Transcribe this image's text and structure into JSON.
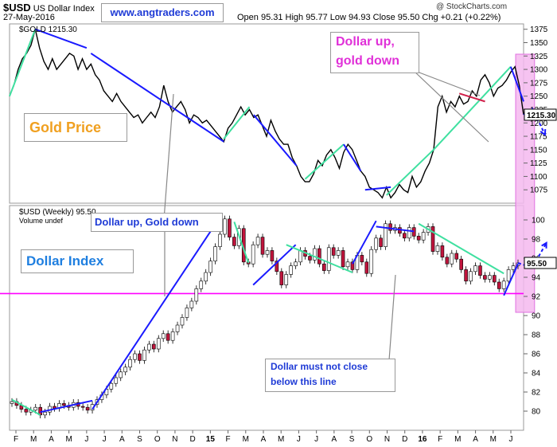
{
  "header": {
    "symbol": "$USD",
    "symbol_desc": "US Dollar Index",
    "date": "27-May-2016",
    "ohlc": "Open 95.31  High 95.77  Low 94.93  Close 95.50  Chg +0.21 (+0.22%)",
    "watermark": "@ StockCharts.com",
    "website": "www.angtraders.com"
  },
  "annotations": {
    "gold_price": "Gold Price",
    "dollar_index": "Dollar Index",
    "dollar_up_gold_down": "Dollar up, Gold down",
    "pink_line1": "Dollar up,",
    "pink_line2": "gold down",
    "bottom_line1": "Dollar must not close",
    "bottom_line2": "below this line"
  },
  "colors": {
    "trend_blue": "#1a1aff",
    "trend_green": "#3fe0a0",
    "support_magenta": "#ff00ff",
    "highlight_pink": "#f5b8ef",
    "candle_up": "#ffffff",
    "candle_down": "#c0143c"
  },
  "chart_data": [
    {
      "type": "line",
      "legend": "$GOLD 1215.30",
      "last_value_label": "1215.30",
      "ylim": [
        1050,
        1385
      ],
      "yticks": [
        1075,
        1100,
        1125,
        1150,
        1175,
        1200,
        1225,
        1250,
        1275,
        1300,
        1325,
        1350,
        1375
      ],
      "x": [
        0,
        1,
        2,
        3,
        4,
        5,
        6,
        7,
        8,
        9,
        10,
        11,
        12,
        13,
        14,
        15,
        16,
        17,
        18,
        19,
        20,
        21,
        22,
        23,
        24,
        25,
        26,
        27,
        28,
        29,
        30,
        31,
        32,
        33,
        34,
        35,
        36,
        37,
        38,
        39,
        40,
        41,
        42,
        43,
        44,
        45,
        46,
        47,
        48,
        49,
        50,
        51,
        52,
        53,
        54,
        55,
        56,
        57,
        58,
        59,
        60,
        61,
        62,
        63,
        64,
        65,
        66,
        67,
        68,
        69,
        70,
        71,
        72,
        73,
        74,
        75,
        76,
        77,
        78,
        79,
        80,
        81,
        82,
        83,
        84,
        85,
        86,
        87,
        88,
        89,
        90,
        91,
        92,
        93,
        94,
        95,
        96,
        97,
        98,
        99,
        100,
        101,
        102,
        103,
        104,
        105,
        106,
        107,
        108,
        109,
        110,
        111,
        112,
        113,
        114,
        115,
        116,
        117,
        118,
        119,
        120
      ],
      "values": [
        1250,
        1270,
        1300,
        1320,
        1330,
        1345,
        1375,
        1340,
        1315,
        1300,
        1320,
        1300,
        1310,
        1320,
        1330,
        1325,
        1300,
        1320,
        1300,
        1310,
        1290,
        1280,
        1260,
        1250,
        1240,
        1255,
        1240,
        1230,
        1220,
        1210,
        1215,
        1200,
        1210,
        1220,
        1210,
        1230,
        1270,
        1240,
        1220,
        1230,
        1240,
        1225,
        1200,
        1215,
        1210,
        1200,
        1205,
        1195,
        1185,
        1175,
        1165,
        1190,
        1200,
        1215,
        1230,
        1215,
        1225,
        1210,
        1215,
        1195,
        1175,
        1205,
        1185,
        1170,
        1160,
        1160,
        1135,
        1120,
        1100,
        1090,
        1090,
        1105,
        1130,
        1120,
        1140,
        1150,
        1135,
        1115,
        1145,
        1160,
        1150,
        1130,
        1110,
        1100,
        1080,
        1075,
        1070,
        1060,
        1080,
        1060,
        1070,
        1085,
        1075,
        1070,
        1100,
        1080,
        1090,
        1110,
        1125,
        1150,
        1230,
        1250,
        1220,
        1240,
        1230,
        1250,
        1235,
        1240,
        1260,
        1250,
        1280,
        1290,
        1275,
        1250,
        1265,
        1270,
        1280,
        1295,
        1305,
        1270,
        1215.3
      ],
      "projection": [
        [
          120,
          1215.3
        ],
        [
          122,
          1228
        ],
        [
          125,
          1178
        ]
      ]
    },
    {
      "type": "candlestick",
      "legend": "$USD (Weekly) 95.50",
      "volume_legend": "Volume undef",
      "last_value_label": "95.50",
      "ylim": [
        78,
        101.5
      ],
      "yticks": [
        80,
        82,
        84,
        86,
        88,
        90,
        92,
        94,
        96,
        98,
        100
      ],
      "xlabels": [
        "F",
        "M",
        "A",
        "M",
        "J",
        "J",
        "A",
        "S",
        "O",
        "N",
        "D",
        "15",
        "F",
        "M",
        "A",
        "M",
        "J",
        "J",
        "A",
        "S",
        "O",
        "N",
        "D",
        "16",
        "F",
        "M",
        "A",
        "M",
        "J"
      ],
      "support_level": 92.3,
      "close": [
        81.0,
        80.6,
        80.2,
        79.9,
        80.1,
        80.4,
        79.6,
        79.9,
        80.5,
        80.3,
        80.8,
        80.6,
        80.4,
        80.9,
        80.5,
        80.4,
        80.1,
        80.7,
        81.2,
        81.7,
        82.3,
        82.9,
        83.5,
        84.1,
        84.6,
        85.4,
        86.0,
        85.3,
        86.4,
        87.0,
        86.5,
        87.6,
        88.1,
        87.4,
        88.3,
        89.0,
        89.8,
        90.8,
        91.5,
        92.8,
        93.6,
        94.5,
        95.7,
        97.2,
        98.5,
        100.1,
        98.2,
        97.3,
        99.1,
        95.6,
        95.4,
        97.4,
        98.2,
        96.4,
        96.8,
        95.7,
        94.6,
        93.2,
        94.3,
        95.2,
        95.6,
        96.8,
        96.2,
        95.8,
        97.0,
        95.4,
        94.7,
        97.1,
        96.3,
        96.8,
        95.1,
        95.6,
        94.8,
        96.3,
        95.6,
        94.4,
        96.9,
        98.1,
        97.2,
        99.6,
        98.9,
        99.2,
        98.6,
        98.1,
        99.2,
        98.3,
        97.9,
        98.7,
        99.3,
        96.7,
        97.3,
        96.1,
        95.4,
        96.5,
        95.9,
        94.8,
        93.6,
        94.6,
        95.2,
        94.2,
        93.8,
        94.2,
        93.5,
        92.8,
        93.6,
        94.8,
        95.2,
        95.5
      ],
      "projection": [
        [
          107,
          95.5
        ],
        [
          110,
          95
        ],
        [
          113,
          97.6
        ]
      ],
      "highlight_band": [
        106.5,
        110.5
      ]
    }
  ]
}
